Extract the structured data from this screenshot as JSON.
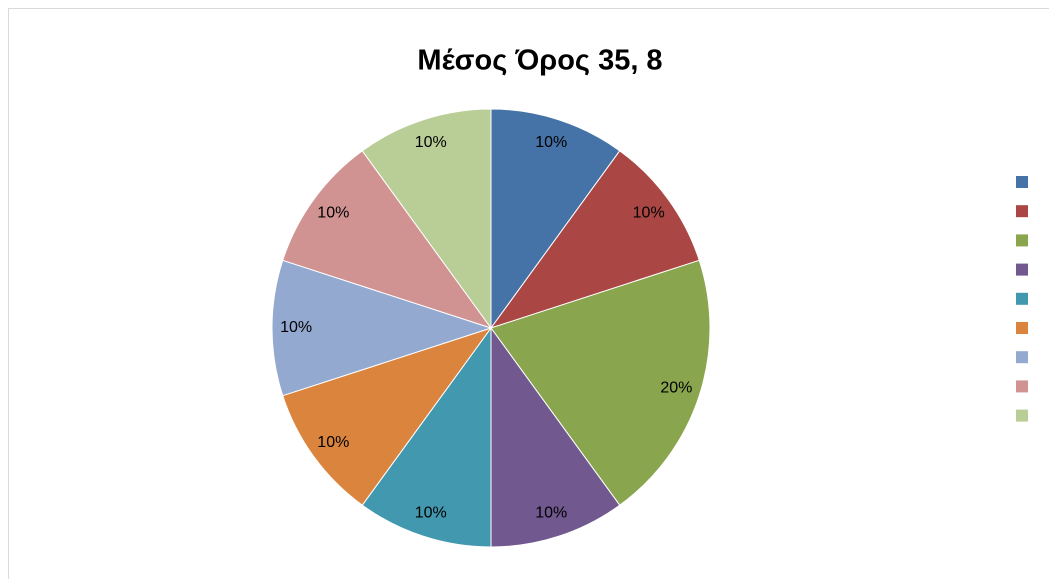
{
  "chart_data": {
    "type": "pie",
    "title": "Μέσος Όρος 35, 8",
    "categories": [
      null,
      null,
      null,
      null,
      null,
      null,
      null,
      null,
      null
    ],
    "values": [
      10,
      10,
      20,
      10,
      10,
      10,
      10,
      10,
      10
    ],
    "value_labels": [
      "10%",
      "10%",
      "20%",
      "10%",
      "10%",
      "10%",
      "10%",
      "10%",
      "10%"
    ],
    "colors": [
      "#4572a7",
      "#aa4643",
      "#89a54e",
      "#71588f",
      "#4198af",
      "#db843d",
      "#93a9cf",
      "#d19392",
      "#b9cd96"
    ],
    "legend": "right"
  }
}
